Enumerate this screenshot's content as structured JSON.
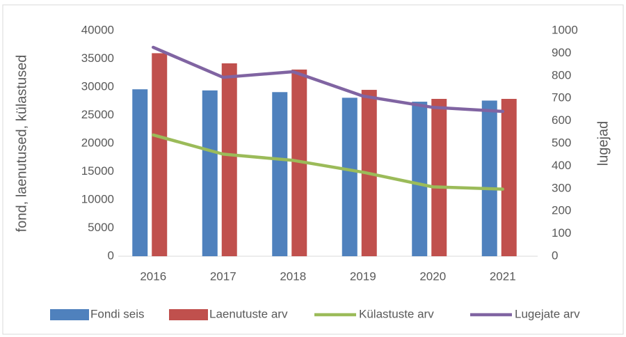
{
  "chart_data": {
    "type": "bar",
    "categories": [
      "2016",
      "2017",
      "2018",
      "2019",
      "2020",
      "2021"
    ],
    "y_label": "fond, laenutused, külastused",
    "y2_label": "lugejad",
    "ylim": [
      0,
      40000
    ],
    "yticks": [
      0,
      5000,
      10000,
      15000,
      20000,
      25000,
      30000,
      35000,
      40000
    ],
    "y2lim": [
      0,
      1000
    ],
    "y2ticks": [
      0,
      100,
      200,
      300,
      400,
      500,
      600,
      700,
      800,
      900,
      1000
    ],
    "grid": false,
    "legend": "bottom",
    "series": [
      {
        "name": "Fondi seis",
        "type": "bar",
        "color": "#4f81bd",
        "values": [
          29600,
          29400,
          29100,
          28100,
          27400,
          27600
        ]
      },
      {
        "name": "Laenutuste arv",
        "type": "bar",
        "color": "#c0504d",
        "values": [
          36000,
          34200,
          33100,
          29500,
          27900,
          27900
        ]
      },
      {
        "name": "Külastuste arv",
        "type": "line",
        "color": "#9bbb59",
        "values": [
          21500,
          18100,
          17000,
          14900,
          12300,
          11900
        ]
      },
      {
        "name": "Lugejate arv",
        "type": "line",
        "axis": "y2",
        "color": "#8064a2",
        "values": [
          926,
          793,
          818,
          710,
          660,
          642
        ]
      }
    ]
  }
}
